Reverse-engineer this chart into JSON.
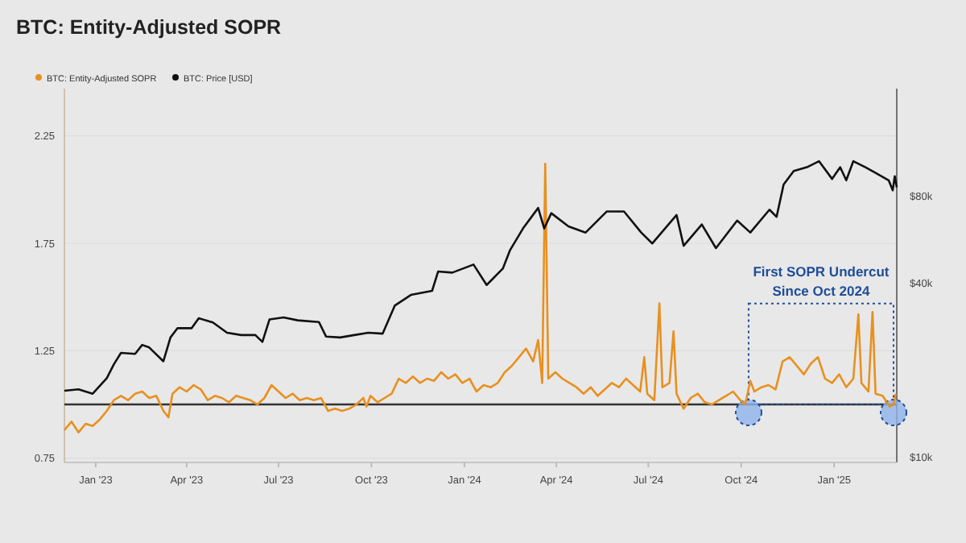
{
  "chart_data": {
    "type": "line",
    "title": "BTC: Entity-Adjusted SOPR",
    "legend": "top",
    "grid": "y",
    "log": "y2",
    "line_style": "solid",
    "xlim": [
      "2022-12-01",
      "2025-03-04"
    ],
    "xticks": [
      {
        "value": "2023-01-01",
        "label": "Jan '23"
      },
      {
        "value": "2023-04-01",
        "label": "Apr '23"
      },
      {
        "value": "2023-07-01",
        "label": "Jul '23"
      },
      {
        "value": "2023-10-01",
        "label": "Oct '23"
      },
      {
        "value": "2024-01-01",
        "label": "Jan '24"
      },
      {
        "value": "2024-04-01",
        "label": "Apr '24"
      },
      {
        "value": "2024-07-01",
        "label": "Jul '24"
      },
      {
        "value": "2024-10-01",
        "label": "Oct '24"
      },
      {
        "value": "2025-01-01",
        "label": "Jan '25"
      }
    ],
    "ylim": [
      0.73,
      2.47
    ],
    "yticks": [
      0.75,
      1.25,
      1.75,
      2.25
    ],
    "y2lim": [
      9600,
      189000
    ],
    "y2ticks": [
      {
        "value": 10000,
        "label": "$10k"
      },
      {
        "value": 40000,
        "label": "$40k"
      },
      {
        "value": 80000,
        "label": "$80k"
      }
    ],
    "ref_lines": [
      {
        "axis": "y",
        "value": 1,
        "color": "#333333"
      }
    ],
    "annotations": [
      "First SOPR Undercut Since Oct 2024"
    ],
    "series": [
      {
        "name": "BTC: Entity-Adjusted SOPR",
        "color": "#e8901f",
        "x": [
          "2022-12-01",
          "2022-12-08",
          "2022-12-15",
          "2022-12-22",
          "2022-12-29",
          "2023-01-05",
          "2023-01-12",
          "2023-01-19",
          "2023-01-26",
          "2023-02-02",
          "2023-02-09",
          "2023-02-16",
          "2023-02-23",
          "2023-03-02",
          "2023-03-09",
          "2023-03-14",
          "2023-03-18",
          "2023-03-25",
          "2023-04-01",
          "2023-04-08",
          "2023-04-15",
          "2023-04-22",
          "2023-04-29",
          "2023-05-06",
          "2023-05-13",
          "2023-05-20",
          "2023-05-27",
          "2023-06-03",
          "2023-06-10",
          "2023-06-17",
          "2023-06-24",
          "2023-07-01",
          "2023-07-08",
          "2023-07-15",
          "2023-07-22",
          "2023-07-29",
          "2023-08-05",
          "2023-08-12",
          "2023-08-19",
          "2023-08-26",
          "2023-09-02",
          "2023-09-09",
          "2023-09-16",
          "2023-09-23",
          "2023-09-26",
          "2023-09-30",
          "2023-10-07",
          "2023-10-14",
          "2023-10-21",
          "2023-10-28",
          "2023-11-04",
          "2023-11-11",
          "2023-11-18",
          "2023-11-25",
          "2023-12-02",
          "2023-12-09",
          "2023-12-16",
          "2023-12-23",
          "2023-12-30",
          "2024-01-06",
          "2024-01-13",
          "2024-01-20",
          "2024-01-27",
          "2024-02-03",
          "2024-02-10",
          "2024-02-17",
          "2024-02-24",
          "2024-03-02",
          "2024-03-09",
          "2024-03-14",
          "2024-03-18",
          "2024-03-21",
          "2024-03-24",
          "2024-03-31",
          "2024-04-07",
          "2024-04-14",
          "2024-04-21",
          "2024-04-28",
          "2024-05-05",
          "2024-05-12",
          "2024-05-19",
          "2024-05-26",
          "2024-06-02",
          "2024-06-09",
          "2024-06-16",
          "2024-06-23",
          "2024-06-27",
          "2024-06-30",
          "2024-07-07",
          "2024-07-12",
          "2024-07-15",
          "2024-07-22",
          "2024-07-26",
          "2024-07-29",
          "2024-08-05",
          "2024-08-12",
          "2024-08-19",
          "2024-08-26",
          "2024-09-02",
          "2024-09-09",
          "2024-09-16",
          "2024-09-23",
          "2024-09-30",
          "2024-10-05",
          "2024-10-10",
          "2024-10-14",
          "2024-10-21",
          "2024-10-28",
          "2024-11-04",
          "2024-11-11",
          "2024-11-18",
          "2024-11-25",
          "2024-12-02",
          "2024-12-09",
          "2024-12-16",
          "2024-12-23",
          "2024-12-30",
          "2025-01-06",
          "2025-01-13",
          "2025-01-20",
          "2025-01-25",
          "2025-01-28",
          "2025-02-04",
          "2025-02-08",
          "2025-02-11",
          "2025-02-18",
          "2025-02-25",
          "2025-03-01",
          "2025-03-03"
        ],
        "values": [
          0.88,
          0.92,
          0.87,
          0.91,
          0.9,
          0.93,
          0.97,
          1.02,
          1.04,
          1.02,
          1.05,
          1.06,
          1.03,
          1.04,
          0.97,
          0.94,
          1.05,
          1.08,
          1.06,
          1.09,
          1.07,
          1.02,
          1.04,
          1.03,
          1.01,
          1.04,
          1.03,
          1.02,
          1.0,
          1.03,
          1.09,
          1.06,
          1.03,
          1.05,
          1.02,
          1.03,
          1.02,
          1.03,
          0.97,
          0.98,
          0.97,
          0.98,
          1.0,
          1.03,
          0.99,
          1.04,
          1.01,
          1.03,
          1.05,
          1.12,
          1.1,
          1.13,
          1.1,
          1.12,
          1.11,
          1.15,
          1.12,
          1.14,
          1.1,
          1.12,
          1.06,
          1.09,
          1.08,
          1.1,
          1.15,
          1.18,
          1.22,
          1.26,
          1.2,
          1.3,
          1.1,
          2.12,
          1.12,
          1.15,
          1.12,
          1.1,
          1.08,
          1.05,
          1.08,
          1.04,
          1.07,
          1.1,
          1.08,
          1.12,
          1.09,
          1.06,
          1.22,
          1.05,
          1.02,
          1.47,
          1.08,
          1.1,
          1.34,
          1.05,
          0.98,
          1.03,
          1.05,
          1.01,
          1.0,
          1.02,
          1.04,
          1.06,
          1.02,
          1.0,
          1.11,
          1.06,
          1.08,
          1.09,
          1.07,
          1.2,
          1.22,
          1.18,
          1.14,
          1.19,
          1.22,
          1.12,
          1.1,
          1.14,
          1.08,
          1.12,
          1.42,
          1.1,
          1.06,
          1.43,
          1.05,
          1.04,
          0.99,
          1.0,
          1.05
        ]
      },
      {
        "name": "BTC: Price [USD]",
        "color": "#111111",
        "axis": "y2",
        "x": [
          "2022-12-01",
          "2022-12-15",
          "2022-12-29",
          "2023-01-12",
          "2023-01-19",
          "2023-01-26",
          "2023-02-09",
          "2023-02-16",
          "2023-02-23",
          "2023-03-09",
          "2023-03-16",
          "2023-03-23",
          "2023-04-06",
          "2023-04-13",
          "2023-04-27",
          "2023-05-11",
          "2023-05-25",
          "2023-06-08",
          "2023-06-15",
          "2023-06-22",
          "2023-07-06",
          "2023-07-20",
          "2023-08-10",
          "2023-08-17",
          "2023-08-31",
          "2023-09-14",
          "2023-09-28",
          "2023-10-12",
          "2023-10-24",
          "2023-11-09",
          "2023-11-30",
          "2023-12-06",
          "2023-12-20",
          "2024-01-10",
          "2024-01-23",
          "2024-02-08",
          "2024-02-15",
          "2024-02-28",
          "2024-03-14",
          "2024-03-20",
          "2024-03-27",
          "2024-04-13",
          "2024-04-30",
          "2024-05-21",
          "2024-06-07",
          "2024-06-24",
          "2024-07-05",
          "2024-07-29",
          "2024-08-05",
          "2024-08-23",
          "2024-09-06",
          "2024-09-27",
          "2024-10-10",
          "2024-10-29",
          "2024-11-05",
          "2024-11-12",
          "2024-11-22",
          "2024-12-05",
          "2024-12-17",
          "2024-12-30",
          "2025-01-07",
          "2025-01-13",
          "2025-01-20",
          "2025-02-01",
          "2025-02-10",
          "2025-02-24",
          "2025-02-28",
          "2025-03-02",
          "2025-03-04"
        ],
        "values": [
          17000,
          17200,
          16600,
          18800,
          21000,
          23000,
          22800,
          24500,
          24000,
          21500,
          26000,
          28000,
          28000,
          30300,
          29300,
          27000,
          26500,
          26500,
          25100,
          30000,
          30500,
          29800,
          29400,
          26200,
          26000,
          26500,
          27000,
          26800,
          33500,
          36500,
          37700,
          44000,
          43600,
          46500,
          39500,
          45000,
          52000,
          62000,
          73000,
          62000,
          70000,
          63000,
          60000,
          71000,
          71000,
          60000,
          55000,
          69000,
          54000,
          64000,
          53000,
          66000,
          60000,
          72000,
          68000,
          88000,
          98000,
          101000,
          106000,
          92000,
          101000,
          91000,
          106000,
          101000,
          97000,
          91000,
          84000,
          94000,
          86000
        ]
      }
    ]
  }
}
